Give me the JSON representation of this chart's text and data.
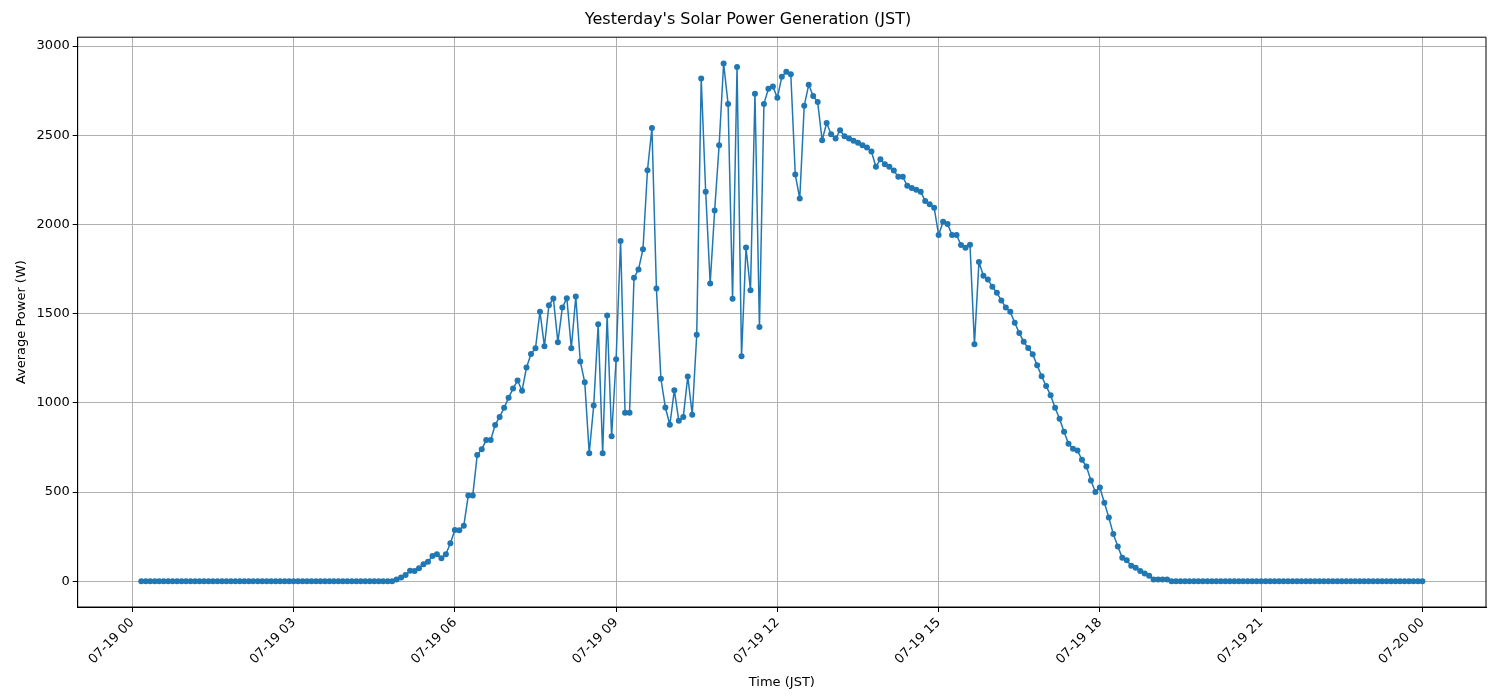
{
  "chart_data": {
    "type": "line",
    "title": "Yesterday's Solar Power Generation (JST)",
    "xlabel": "Time (JST)",
    "ylabel": "Average Power (W)",
    "x": [
      "--07-19T00:10",
      "--07-19T00:15",
      "--07-19T00:20",
      "--07-19T00:25",
      "--07-19T00:30",
      "--07-19T00:35",
      "--07-19T00:40",
      "--07-19T00:45",
      "--07-19T00:50",
      "--07-19T00:55",
      "--07-19T01:00",
      "--07-19T01:05",
      "--07-19T01:10",
      "--07-19T01:15",
      "--07-19T01:20",
      "--07-19T01:25",
      "--07-19T01:30",
      "--07-19T01:35",
      "--07-19T01:40",
      "--07-19T01:45",
      "--07-19T01:50",
      "--07-19T01:55",
      "--07-19T02:00",
      "--07-19T02:05",
      "--07-19T02:10",
      "--07-19T02:15",
      "--07-19T02:20",
      "--07-19T02:25",
      "--07-19T02:30",
      "--07-19T02:35",
      "--07-19T02:40",
      "--07-19T02:45",
      "--07-19T02:50",
      "--07-19T02:55",
      "--07-19T03:00",
      "--07-19T03:05",
      "--07-19T03:10",
      "--07-19T03:15",
      "--07-19T03:20",
      "--07-19T03:25",
      "--07-19T03:30",
      "--07-19T03:35",
      "--07-19T03:40",
      "--07-19T03:45",
      "--07-19T03:50",
      "--07-19T03:55",
      "--07-19T04:00",
      "--07-19T04:05",
      "--07-19T04:10",
      "--07-19T04:15",
      "--07-19T04:20",
      "--07-19T04:25",
      "--07-19T04:30",
      "--07-19T04:35",
      "--07-19T04:40",
      "--07-19T04:45",
      "--07-19T04:50",
      "--07-19T04:55",
      "--07-19T05:00",
      "--07-19T05:05",
      "--07-19T05:10",
      "--07-19T05:15",
      "--07-19T05:20",
      "--07-19T05:25",
      "--07-19T05:30",
      "--07-19T05:35",
      "--07-19T05:40",
      "--07-19T05:45",
      "--07-19T05:50",
      "--07-19T05:55",
      "--07-19T06:00",
      "--07-19T06:05",
      "--07-19T06:10",
      "--07-19T06:15",
      "--07-19T06:20",
      "--07-19T06:25",
      "--07-19T06:30",
      "--07-19T06:35",
      "--07-19T06:40",
      "--07-19T06:45",
      "--07-19T06:50",
      "--07-19T06:55",
      "--07-19T07:00",
      "--07-19T07:05",
      "--07-19T07:10",
      "--07-19T07:15",
      "--07-19T07:20",
      "--07-19T07:25",
      "--07-19T07:30",
      "--07-19T07:35",
      "--07-19T07:40",
      "--07-19T07:45",
      "--07-19T07:50",
      "--07-19T07:55",
      "--07-19T08:00",
      "--07-19T08:05",
      "--07-19T08:10",
      "--07-19T08:15",
      "--07-19T08:20",
      "--07-19T08:25",
      "--07-19T08:30",
      "--07-19T08:35",
      "--07-19T08:40",
      "--07-19T08:45",
      "--07-19T08:50",
      "--07-19T08:55",
      "--07-19T09:00",
      "--07-19T09:05",
      "--07-19T09:10",
      "--07-19T09:15",
      "--07-19T09:20",
      "--07-19T09:25",
      "--07-19T09:30",
      "--07-19T09:35",
      "--07-19T09:40",
      "--07-19T09:45",
      "--07-19T09:50",
      "--07-19T09:55",
      "--07-19T10:00",
      "--07-19T10:05",
      "--07-19T10:10",
      "--07-19T10:15",
      "--07-19T10:20",
      "--07-19T10:25",
      "--07-19T10:30",
      "--07-19T10:35",
      "--07-19T10:40",
      "--07-19T10:45",
      "--07-19T10:50",
      "--07-19T10:55",
      "--07-19T11:00",
      "--07-19T11:05",
      "--07-19T11:10",
      "--07-19T11:15",
      "--07-19T11:20",
      "--07-19T11:25",
      "--07-19T11:30",
      "--07-19T11:35",
      "--07-19T11:40",
      "--07-19T11:45",
      "--07-19T11:50",
      "--07-19T11:55",
      "--07-19T12:00",
      "--07-19T12:05",
      "--07-19T12:10",
      "--07-19T12:15",
      "--07-19T12:20",
      "--07-19T12:25",
      "--07-19T12:30",
      "--07-19T12:35",
      "--07-19T12:40",
      "--07-19T12:45",
      "--07-19T12:50",
      "--07-19T12:55",
      "--07-19T13:00",
      "--07-19T13:05",
      "--07-19T13:10",
      "--07-19T13:15",
      "--07-19T13:20",
      "--07-19T13:25",
      "--07-19T13:30",
      "--07-19T13:35",
      "--07-19T13:40",
      "--07-19T13:45",
      "--07-19T13:50",
      "--07-19T13:55",
      "--07-19T14:00",
      "--07-19T14:05",
      "--07-19T14:10",
      "--07-19T14:15",
      "--07-19T14:20",
      "--07-19T14:25",
      "--07-19T14:30",
      "--07-19T14:35",
      "--07-19T14:40",
      "--07-19T14:45",
      "--07-19T14:50",
      "--07-19T14:55",
      "--07-19T15:00",
      "--07-19T15:05",
      "--07-19T15:10",
      "--07-19T15:15",
      "--07-19T15:20",
      "--07-19T15:25",
      "--07-19T15:30",
      "--07-19T15:35",
      "--07-19T15:40",
      "--07-19T15:45",
      "--07-19T15:50",
      "--07-19T15:55",
      "--07-19T16:00",
      "--07-19T16:05",
      "--07-19T16:10",
      "--07-19T16:15",
      "--07-19T16:20",
      "--07-19T16:25",
      "--07-19T16:30",
      "--07-19T16:35",
      "--07-19T16:40",
      "--07-19T16:45",
      "--07-19T16:50",
      "--07-19T16:55",
      "--07-19T17:00",
      "--07-19T17:05",
      "--07-19T17:10",
      "--07-19T17:15",
      "--07-19T17:20",
      "--07-19T17:25",
      "--07-19T17:30",
      "--07-19T17:35",
      "--07-19T17:40",
      "--07-19T17:45",
      "--07-19T17:50",
      "--07-19T17:55",
      "--07-19T18:00",
      "--07-19T18:05",
      "--07-19T18:10",
      "--07-19T18:15",
      "--07-19T18:20",
      "--07-19T18:25",
      "--07-19T18:30",
      "--07-19T18:35",
      "--07-19T18:40",
      "--07-19T18:45",
      "--07-19T18:50",
      "--07-19T18:55",
      "--07-19T19:00",
      "--07-19T19:05",
      "--07-19T19:10",
      "--07-19T19:15",
      "--07-19T19:20",
      "--07-19T19:25",
      "--07-19T19:30",
      "--07-19T19:35",
      "--07-19T19:40",
      "--07-19T19:45",
      "--07-19T19:50",
      "--07-19T19:55",
      "--07-19T20:00",
      "--07-19T20:05",
      "--07-19T20:10",
      "--07-19T20:15",
      "--07-19T20:20",
      "--07-19T20:25",
      "--07-19T20:30",
      "--07-19T20:35",
      "--07-19T20:40",
      "--07-19T20:45",
      "--07-19T20:50",
      "--07-19T20:55",
      "--07-19T21:00",
      "--07-19T21:05",
      "--07-19T21:10",
      "--07-19T21:15",
      "--07-19T21:20",
      "--07-19T21:25",
      "--07-19T21:30",
      "--07-19T21:35",
      "--07-19T21:40",
      "--07-19T21:45",
      "--07-19T21:50",
      "--07-19T21:55",
      "--07-19T22:00",
      "--07-19T22:05",
      "--07-19T22:10",
      "--07-19T22:15",
      "--07-19T22:20",
      "--07-19T22:25",
      "--07-19T22:30",
      "--07-19T22:35",
      "--07-19T22:40",
      "--07-19T22:45",
      "--07-19T22:50",
      "--07-19T22:55",
      "--07-19T23:00",
      "--07-19T23:05",
      "--07-19T23:10",
      "--07-19T23:15",
      "--07-19T23:20",
      "--07-19T23:25",
      "--07-19T23:30",
      "--07-19T23:35",
      "--07-19T23:40",
      "--07-19T23:45",
      "--07-19T23:50",
      "--07-19T23:55",
      "--07-20T00:00"
    ],
    "series": [
      {
        "color": "#1f77b4",
        "values": [
          0,
          0,
          0,
          0,
          0,
          0,
          0,
          0,
          0,
          0,
          0,
          0,
          0,
          0,
          0,
          0,
          0,
          0,
          0,
          0,
          0,
          0,
          0,
          0,
          0,
          0,
          0,
          0,
          0,
          0,
          0,
          0,
          0,
          0,
          0,
          0,
          0,
          0,
          0,
          0,
          0,
          0,
          0,
          0,
          0,
          0,
          0,
          0,
          0,
          0,
          0,
          0,
          0,
          0,
          0,
          0,
          0,
          10,
          20,
          35,
          58,
          57,
          72,
          95,
          109,
          141,
          151,
          128,
          151,
          213,
          287,
          285,
          311,
          481,
          481,
          708,
          740,
          791,
          792,
          876,
          921,
          972,
          1028,
          1081,
          1125,
          1068,
          1198,
          1274,
          1306,
          1511,
          1317,
          1547,
          1585,
          1340,
          1534,
          1587,
          1306,
          1596,
          1232,
          1115,
          717,
          985,
          1440,
          717,
          1490,
          813,
          1244,
          1908,
          944,
          944,
          1701,
          1748,
          1861,
          2304,
          2541,
          1641,
          1135,
          974,
          877,
          1071,
          899,
          921,
          1148,
          933,
          1381,
          2818,
          2183,
          1669,
          2078,
          2444,
          2903,
          2676,
          1584,
          2883,
          1261,
          1871,
          1631,
          2733,
          1425,
          2676,
          2761,
          2773,
          2711,
          2828,
          2856,
          2842,
          2280,
          2145,
          2666,
          2783,
          2720,
          2686,
          2472,
          2569,
          2506,
          2482,
          2528,
          2494,
          2482,
          2470,
          2458,
          2444,
          2432,
          2409,
          2324,
          2365,
          2337,
          2324,
          2302,
          2267,
          2267,
          2217,
          2205,
          2195,
          2183,
          2132,
          2114,
          2094,
          1941,
          2015,
          2002,
          1941,
          1941,
          1885,
          1870,
          1887,
          1329,
          1789,
          1713,
          1691,
          1651,
          1617,
          1574,
          1534,
          1510,
          1449,
          1392,
          1342,
          1307,
          1272,
          1210,
          1149,
          1094,
          1043,
          972,
          911,
          838,
          770,
          743,
          732,
          681,
          643,
          564,
          500,
          525,
          440,
          357,
          264,
          194,
          132,
          117,
          87,
          75,
          57,
          43,
          30,
          10,
          10,
          10,
          10,
          0,
          0,
          0,
          0,
          0,
          0,
          0,
          0,
          0,
          0,
          0,
          0,
          0,
          0,
          0,
          0,
          0,
          0,
          0,
          0,
          0,
          0,
          0,
          0,
          0,
          0,
          0,
          0,
          0,
          0,
          0,
          0,
          0,
          0,
          0,
          0,
          0,
          0,
          0,
          0,
          0,
          0,
          0,
          0,
          0,
          0,
          0,
          0,
          0,
          0,
          0,
          0,
          0,
          0,
          0,
          0,
          0
        ]
      }
    ],
    "xlim": [
      "--07-18T22:59",
      "--07-20T01:11"
    ],
    "xticks": [
      {
        "value": "--07-19T00:00",
        "label": "07-19 00"
      },
      {
        "value": "--07-19T03:00",
        "label": "07-19 03"
      },
      {
        "value": "--07-19T06:00",
        "label": "07-19 06"
      },
      {
        "value": "--07-19T09:00",
        "label": "07-19 09"
      },
      {
        "value": "--07-19T12:00",
        "label": "07-19 12"
      },
      {
        "value": "--07-19T15:00",
        "label": "07-19 15"
      },
      {
        "value": "--07-19T18:00",
        "label": "07-19 18"
      },
      {
        "value": "--07-19T21:00",
        "label": "07-19 21"
      },
      {
        "value": "--07-20T00:00",
        "label": "07-20 00"
      }
    ],
    "ylim": [
      -145,
      3050
    ],
    "yticks": [
      0,
      500,
      1000,
      1500,
      2000,
      2500,
      3000
    ],
    "grid": true,
    "legend": false,
    "marker": "circle",
    "line_style": "solid"
  }
}
